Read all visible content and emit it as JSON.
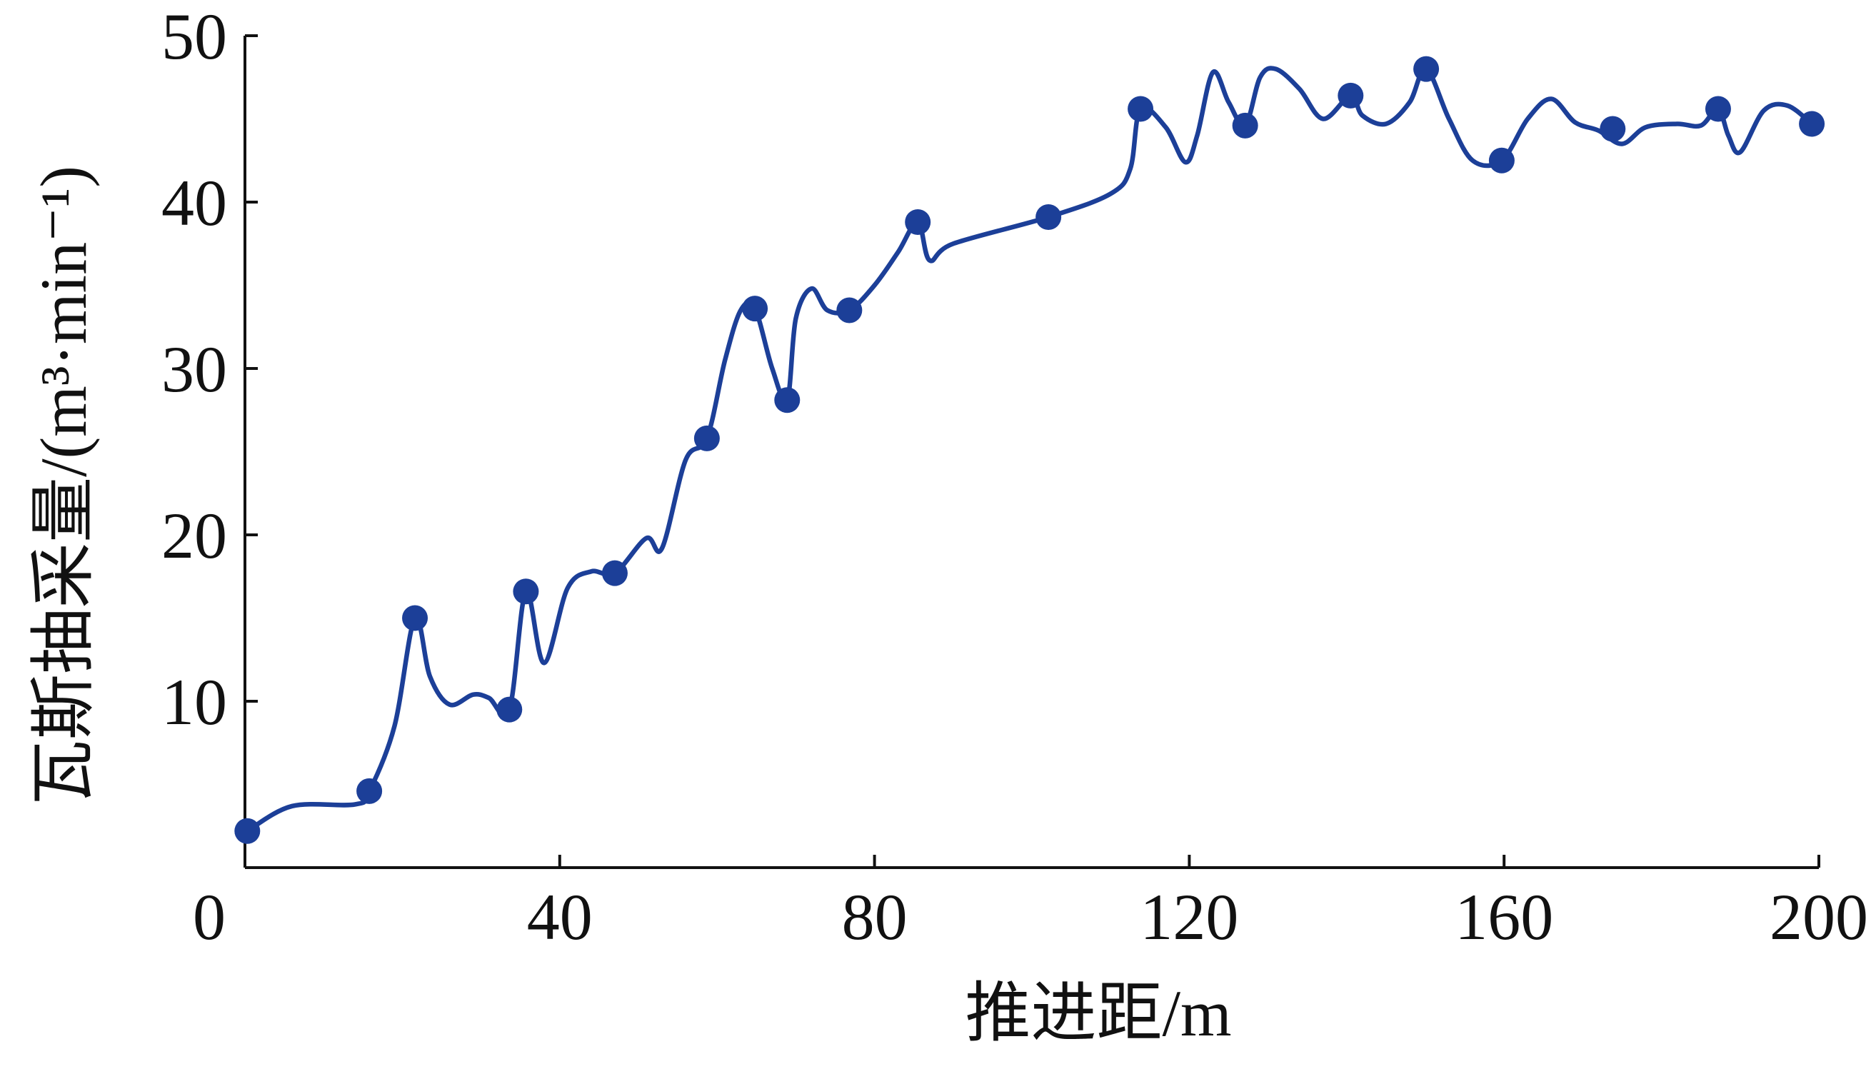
{
  "chart_data": {
    "type": "line",
    "xlabel": "推进距/m",
    "ylabel": "瓦斯抽采量/(m³·min⁻¹)",
    "xlim": [
      0,
      200
    ],
    "xticks": [
      0,
      40,
      80,
      120,
      160,
      200
    ],
    "ylim": [
      0,
      50
    ],
    "yticks": [
      10,
      20,
      30,
      40,
      50
    ],
    "series": [
      {
        "color": "#1c3f98",
        "markers": false,
        "x": [
          0.3,
          6,
          14,
          15.8,
          19,
          21.6,
          23.5,
          26,
          29,
          31,
          33.6,
          35.7,
          38,
          41,
          44,
          47,
          51,
          53,
          56,
          58.7,
          61,
          63,
          64.8,
          67,
          68.9,
          70,
          72,
          74,
          76.8,
          80,
          83,
          85.5,
          87,
          90,
          102.1,
          110,
          112.5,
          113.8,
          117,
          119.5,
          121,
          123,
          125,
          127.1,
          129,
          131,
          134,
          137,
          140.5,
          142,
          145,
          148,
          150.1,
          153,
          156,
          159.7,
          163,
          166,
          169,
          172,
          175,
          178,
          182,
          185,
          187.2,
          188.5,
          190,
          193,
          196,
          199.1
        ],
        "values": [
          2.2,
          3.7,
          3.8,
          4.6,
          8.5,
          15.0,
          11.5,
          9.8,
          10.4,
          10.2,
          9.5,
          16.6,
          12.3,
          16.8,
          17.8,
          17.7,
          19.8,
          19.2,
          24.5,
          25.8,
          30.5,
          33.5,
          33.6,
          30,
          28.1,
          33,
          34.8,
          33.5,
          33.5,
          35,
          37,
          38.8,
          36.5,
          37.5,
          39.1,
          40.5,
          42,
          45.6,
          44.5,
          42.4,
          44,
          47.8,
          46,
          44.6,
          47.5,
          48,
          46.8,
          45,
          46.4,
          45.2,
          44.7,
          46,
          48.0,
          45,
          42.5,
          42.5,
          45,
          46.2,
          44.8,
          44.3,
          43.5,
          44.5,
          44.7,
          44.6,
          45.6,
          44,
          43,
          45.5,
          45.8,
          44.7
        ]
      },
      {
        "color": "#1c3f98",
        "markers": true,
        "line": false,
        "x": [
          0.3,
          15.8,
          21.6,
          33.6,
          35.7,
          47.0,
          58.7,
          64.8,
          68.9,
          76.8,
          85.5,
          102.1,
          113.8,
          127.1,
          140.5,
          150.1,
          159.7,
          173.8,
          187.2,
          199.1
        ],
        "values": [
          2.2,
          4.6,
          15.0,
          9.5,
          16.6,
          17.7,
          25.8,
          33.6,
          28.1,
          33.5,
          38.8,
          39.1,
          45.6,
          44.6,
          46.4,
          48.0,
          42.5,
          44.4,
          45.6,
          44.7
        ]
      }
    ]
  }
}
